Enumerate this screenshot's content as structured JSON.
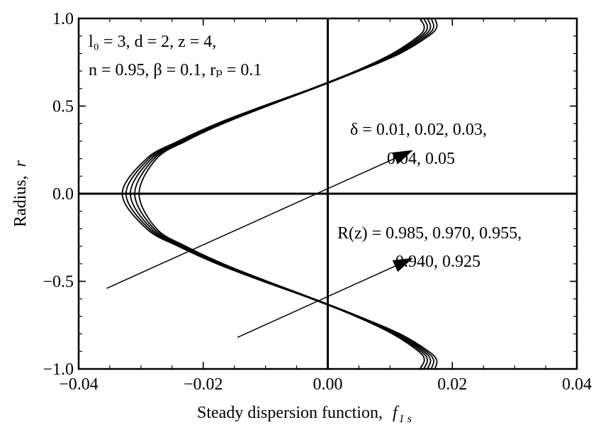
{
  "chart_data": {
    "type": "line",
    "title": "",
    "xlabel": "Steady dispersion function,",
    "xlabel_symbol": "f",
    "xlabel_subscript": "1 s",
    "ylabel": "Radius,",
    "ylabel_symbol": "r",
    "xlim": [
      -0.04,
      0.04
    ],
    "ylim": [
      -1.0,
      1.0
    ],
    "x_ticks": [
      {
        "value": -0.04,
        "label": "−0.04"
      },
      {
        "value": -0.02,
        "label": "−0.02"
      },
      {
        "value": 0.0,
        "label": "0.00"
      },
      {
        "value": 0.02,
        "label": "0.02"
      },
      {
        "value": 0.04,
        "label": "0.04"
      }
    ],
    "y_ticks": [
      {
        "value": 1.0,
        "label": "1.0"
      },
      {
        "value": 0.5,
        "label": "0.5"
      },
      {
        "value": 0.0,
        "label": "0.0"
      },
      {
        "value": -0.5,
        "label": "−0.5"
      },
      {
        "value": -1.0,
        "label": "−1.0"
      }
    ],
    "x_minor_step": 0.005,
    "y_minor_step": 0.1,
    "grid": false,
    "reference_lines": {
      "x": 0.0,
      "y": 0.0
    },
    "line_color": "#000000",
    "series": [
      {
        "values_f1s": [
          0.0148,
          0.0155,
          0.0146,
          0.0104,
          0.0045,
          -0.0026,
          -0.0104,
          -0.0178,
          -0.024,
          -0.0291,
          -0.033,
          -0.0291,
          -0.024,
          -0.0178,
          -0.0104,
          -0.0026,
          0.0045,
          0.0104,
          0.0146,
          0.0155,
          0.0148
        ]
      },
      {
        "values_f1s": [
          0.0154,
          0.016,
          0.015,
          0.0107,
          0.0046,
          -0.0025,
          -0.0103,
          -0.0176,
          -0.0237,
          -0.0287,
          -0.0324,
          -0.0287,
          -0.0237,
          -0.0176,
          -0.0103,
          -0.0025,
          0.0046,
          0.0107,
          0.015,
          0.016,
          0.0154
        ]
      },
      {
        "values_f1s": [
          0.016,
          0.0165,
          0.0154,
          0.011,
          0.0048,
          -0.0024,
          -0.0101,
          -0.0173,
          -0.0234,
          -0.0283,
          -0.0317,
          -0.0283,
          -0.0234,
          -0.0173,
          -0.0101,
          -0.0024,
          0.0048,
          0.011,
          0.0154,
          0.0165,
          0.016
        ]
      },
      {
        "values_f1s": [
          0.0166,
          0.017,
          0.0158,
          0.0113,
          0.0049,
          -0.0023,
          -0.0099,
          -0.0171,
          -0.0231,
          -0.0279,
          -0.031,
          -0.0279,
          -0.0231,
          -0.0171,
          -0.0099,
          -0.0023,
          0.0049,
          0.0113,
          0.0158,
          0.017,
          0.0166
        ]
      },
      {
        "values_f1s": [
          0.0172,
          0.0175,
          0.0162,
          0.0116,
          0.005,
          -0.0022,
          -0.0097,
          -0.0168,
          -0.0228,
          -0.0275,
          -0.0303,
          -0.0275,
          -0.0228,
          -0.0168,
          -0.0097,
          -0.0022,
          0.005,
          0.0116,
          0.0162,
          0.0175,
          0.0172
        ]
      }
    ],
    "r_values": [
      -1.0,
      -0.95,
      -0.9,
      -0.8,
      -0.7,
      -0.6,
      -0.5,
      -0.4,
      -0.3,
      -0.2,
      0.0,
      0.2,
      0.3,
      0.4,
      0.5,
      0.6,
      0.7,
      0.8,
      0.9,
      0.95,
      1.0
    ],
    "annotations": {
      "params_line1": "l₀ = 3,  d = 2,  z = 4,",
      "params_line2": "n = 0.95, β = 0.1, rₚ = 0.1",
      "delta_line1": "δ = 0.01, 0.02, 0.03,",
      "delta_line2": "0.04, 0.05",
      "R_line1": "R(z) = 0.985, 0.970, 0.955,",
      "R_line2": "0.940, 0.925"
    },
    "arrows": [
      {
        "from": [
          -0.0355,
          -0.54
        ],
        "to": [
          0.0135,
          0.245
        ]
      },
      {
        "from": [
          -0.0145,
          -0.82
        ],
        "to": [
          0.0135,
          -0.37
        ]
      }
    ]
  }
}
